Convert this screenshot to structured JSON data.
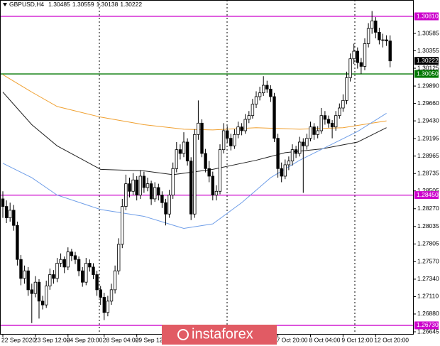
{
  "chart_data": {
    "type": "candlestick",
    "symbol": "GBPUSD,H4",
    "header_values": [
      1.30485,
      1.30559,
      1.30138,
      1.30222
    ],
    "watermark": "instaforex",
    "ylim": [
      1.26617,
      1.31026
    ],
    "yticks": [
      1.30585,
      1.30355,
      1.30125,
      {
        "value": 1.2989,
        "label": "1.29890"
      },
      {
        "value": 1.2966,
        "label": "1.29660"
      },
      {
        "value": 1.2943,
        "label": "1.29430"
      },
      1.29195,
      1.28965,
      1.28735,
      1.28505,
      {
        "value": 1.2827,
        "label": "1.28270"
      },
      1.28035,
      1.27805,
      {
        "value": 1.2757,
        "label": "1.27570"
      },
      {
        "value": 1.2734,
        "label": "1.27340"
      },
      {
        "value": 1.2711,
        "label": "1.27110"
      },
      {
        "value": 1.2688,
        "label": "1.26880"
      },
      1.26645
    ],
    "price_labels": [
      {
        "value": 1.3081,
        "label": "1.30810",
        "color": "#cc00cc",
        "line": true
      },
      {
        "value": 1.30222,
        "label": "1.30222",
        "color": "#000000",
        "line": false
      },
      {
        "value": 1.3005,
        "label": "1.30050",
        "color": "#007700",
        "line": true
      },
      {
        "value": 1.2845,
        "label": "1.28450",
        "color": "#cc00cc",
        "line": true
      },
      {
        "value": 1.2673,
        "label": "1.26730",
        "color": "#cc00cc",
        "line": true
      }
    ],
    "up_color": "#ffffff",
    "down_color": "#000000",
    "categories": [
      "22 Sep 2020",
      null,
      null,
      null,
      null,
      null,
      null,
      null,
      null,
      "23 Sep 12:00",
      null,
      null,
      null,
      null,
      null,
      null,
      null,
      null,
      "24 Sep 20:00",
      null,
      null,
      null,
      null,
      null,
      null,
      null,
      null,
      null,
      "28 Sep 04:00",
      null,
      null,
      null,
      null,
      null,
      null,
      null,
      null,
      "29 Sep 12:00",
      null,
      null,
      null,
      null,
      null,
      null,
      null,
      null,
      null,
      null,
      null,
      null,
      null,
      null,
      null,
      null,
      null,
      null,
      null,
      null,
      null,
      null,
      null,
      null,
      null,
      null,
      null,
      null,
      null,
      null,
      null,
      null,
      null,
      null,
      null,
      null,
      null,
      null,
      "7 Oct 20:00",
      null,
      null,
      null,
      null,
      null,
      null,
      null,
      null,
      "8 Oct 04:00",
      null,
      null,
      null,
      null,
      null,
      null,
      null,
      null,
      "9 Oct 12:00",
      null,
      null,
      null,
      null,
      null,
      null,
      null,
      null,
      "12 Oct 20:00",
      null,
      null,
      null,
      null
    ],
    "ohlc": [
      [
        1.284,
        1.285,
        1.2815,
        1.283
      ],
      [
        1.283,
        1.2838,
        1.2808,
        1.2815
      ],
      [
        1.2815,
        1.2835,
        1.281,
        1.2825
      ],
      [
        1.2825,
        1.2832,
        1.2798,
        1.2805
      ],
      [
        1.2805,
        1.281,
        1.2752,
        1.276
      ],
      [
        1.276,
        1.2766,
        1.2726,
        1.2735
      ],
      [
        1.2735,
        1.2752,
        1.2728,
        1.2745
      ],
      [
        1.2745,
        1.275,
        1.2712,
        1.272
      ],
      [
        1.272,
        1.2728,
        1.2676,
        1.2715
      ],
      [
        1.2715,
        1.2738,
        1.271,
        1.273
      ],
      [
        1.273,
        1.2734,
        1.2682,
        1.2705
      ],
      [
        1.2705,
        1.2712,
        1.2694,
        1.27
      ],
      [
        1.27,
        1.2732,
        1.2696,
        1.2725
      ],
      [
        1.2725,
        1.2748,
        1.272,
        1.274
      ],
      [
        1.274,
        1.2746,
        1.2728,
        1.2735
      ],
      [
        1.2735,
        1.2762,
        1.273,
        1.2755
      ],
      [
        1.2755,
        1.2768,
        1.275,
        1.276
      ],
      [
        1.276,
        1.2764,
        1.2742,
        1.275
      ],
      [
        1.275,
        1.2776,
        1.2746,
        1.277
      ],
      [
        1.277,
        1.2774,
        1.2758,
        1.2765
      ],
      [
        1.2765,
        1.277,
        1.2754,
        1.276
      ],
      [
        1.276,
        1.2764,
        1.2738,
        1.2745
      ],
      [
        1.2745,
        1.275,
        1.2724,
        1.273
      ],
      [
        1.273,
        1.2762,
        1.2726,
        1.2755
      ],
      [
        1.2755,
        1.276,
        1.2744,
        1.275
      ],
      [
        1.275,
        1.2755,
        1.2734,
        1.274
      ],
      [
        1.274,
        1.2745,
        1.2712,
        1.272
      ],
      [
        1.272,
        1.2725,
        1.27,
        1.271
      ],
      [
        1.271,
        1.2716,
        1.268,
        1.269
      ],
      [
        1.269,
        1.2712,
        1.2685,
        1.2705
      ],
      [
        1.2705,
        1.2728,
        1.27,
        1.272
      ],
      [
        1.272,
        1.2752,
        1.2715,
        1.2745
      ],
      [
        1.2745,
        1.2788,
        1.274,
        1.278
      ],
      [
        1.278,
        1.284,
        1.2775,
        1.283
      ],
      [
        1.283,
        1.2872,
        1.2825,
        1.286
      ],
      [
        1.286,
        1.2868,
        1.2842,
        1.285
      ],
      [
        1.285,
        1.2874,
        1.2845,
        1.2865
      ],
      [
        1.2865,
        1.287,
        1.2838,
        1.2845
      ],
      [
        1.2845,
        1.2878,
        1.284,
        1.287
      ],
      [
        1.287,
        1.2876,
        1.2848,
        1.2855
      ],
      [
        1.2855,
        1.2868,
        1.285,
        1.286
      ],
      [
        1.286,
        1.2864,
        1.2832,
        1.284
      ],
      [
        1.284,
        1.2862,
        1.2836,
        1.2855
      ],
      [
        1.2855,
        1.286,
        1.2838,
        1.2845
      ],
      [
        1.2845,
        1.285,
        1.2828,
        1.2835
      ],
      [
        1.2835,
        1.284,
        1.2805,
        1.282
      ],
      [
        1.282,
        1.2852,
        1.2815,
        1.2845
      ],
      [
        1.2845,
        1.2888,
        1.284,
        1.288
      ],
      [
        1.288,
        1.2915,
        1.2875,
        1.2905
      ],
      [
        1.2905,
        1.2912,
        1.2892,
        1.29
      ],
      [
        1.29,
        1.2928,
        1.2895,
        1.2915
      ],
      [
        1.2915,
        1.292,
        1.2884,
        1.289
      ],
      [
        1.289,
        1.2895,
        1.2812,
        1.282
      ],
      [
        1.282,
        1.2932,
        1.2815,
        1.2925
      ],
      [
        1.2925,
        1.297,
        1.2918,
        1.294
      ],
      [
        1.294,
        1.2945,
        1.2895,
        1.29
      ],
      [
        1.29,
        1.2906,
        1.2875,
        1.288
      ],
      [
        1.288,
        1.289,
        1.2862,
        1.287
      ],
      [
        1.287,
        1.2876,
        1.2838,
        1.2845
      ],
      [
        1.2845,
        1.2858,
        1.2838,
        1.285
      ],
      [
        1.285,
        1.2912,
        1.2846,
        1.2905
      ],
      [
        1.2905,
        1.294,
        1.29,
        1.293
      ],
      [
        1.293,
        1.2936,
        1.2914,
        1.292
      ],
      [
        1.292,
        1.2926,
        1.2904,
        1.291
      ],
      [
        1.291,
        1.2932,
        1.2906,
        1.2925
      ],
      [
        1.2925,
        1.2942,
        1.292,
        1.2935
      ],
      [
        1.2935,
        1.294,
        1.2924,
        1.293
      ],
      [
        1.293,
        1.2952,
        1.2926,
        1.2945
      ],
      [
        1.2945,
        1.2956,
        1.294,
        1.295
      ],
      [
        1.295,
        1.2972,
        1.2946,
        1.2965
      ],
      [
        1.2965,
        1.2982,
        1.296,
        1.2975
      ],
      [
        1.2975,
        1.2988,
        1.297,
        1.298
      ],
      [
        1.298,
        1.3002,
        1.2976,
        1.299
      ],
      [
        1.299,
        1.2996,
        1.298,
        1.2985
      ],
      [
        1.2985,
        1.299,
        1.2968,
        1.2975
      ],
      [
        1.2975,
        1.298,
        1.2915,
        1.292
      ],
      [
        1.292,
        1.2926,
        1.2868,
        1.288
      ],
      [
        1.288,
        1.2888,
        1.2862,
        1.287
      ],
      [
        1.287,
        1.2892,
        1.2866,
        1.2885
      ],
      [
        1.2885,
        1.2896,
        1.2878,
        1.289
      ],
      [
        1.289,
        1.2912,
        1.2884,
        1.2905
      ],
      [
        1.2905,
        1.291,
        1.2894,
        1.29
      ],
      [
        1.29,
        1.2922,
        1.2896,
        1.2915
      ],
      [
        1.2915,
        1.292,
        1.2848,
        1.291
      ],
      [
        1.291,
        1.2926,
        1.2905,
        1.292
      ],
      [
        1.292,
        1.2942,
        1.2916,
        1.2935
      ],
      [
        1.2935,
        1.294,
        1.2918,
        1.2925
      ],
      [
        1.2925,
        1.2936,
        1.292,
        1.293
      ],
      [
        1.293,
        1.296,
        1.2926,
        1.295
      ],
      [
        1.295,
        1.2956,
        1.2938,
        1.2945
      ],
      [
        1.2945,
        1.295,
        1.2934,
        1.294
      ],
      [
        1.294,
        1.2944,
        1.292,
        1.2935
      ],
      [
        1.2935,
        1.2956,
        1.293,
        1.295
      ],
      [
        1.295,
        1.2966,
        1.2946,
        1.296
      ],
      [
        1.296,
        1.2978,
        1.2955,
        1.297
      ],
      [
        1.297,
        1.3008,
        1.2965,
        1.3
      ],
      [
        1.3,
        1.3032,
        1.2995,
        1.3025
      ],
      [
        1.3025,
        1.3045,
        1.3018,
        1.3035
      ],
      [
        1.3035,
        1.304,
        1.3012,
        1.302
      ],
      [
        1.302,
        1.3026,
        1.3005,
        1.3015
      ],
      [
        1.3015,
        1.3052,
        1.301,
        1.3045
      ],
      [
        1.3045,
        1.3072,
        1.304,
        1.3065
      ],
      [
        1.3065,
        1.3088,
        1.3058,
        1.3075
      ],
      [
        1.3075,
        1.308,
        1.3052,
        1.306
      ],
      [
        1.306,
        1.3066,
        1.3044,
        1.305
      ],
      [
        1.305,
        1.3058,
        1.304,
        1.305
      ],
      [
        1.305,
        1.3056,
        1.3042,
        1.30485
      ],
      [
        1.30485,
        1.30559,
        1.30138,
        1.30222
      ]
    ],
    "moving_averages": [
      {
        "color": "#222222",
        "x": [
          0,
          8,
          15,
          27,
          39,
          47,
          58,
          70,
          78,
          88,
          98,
          106
        ],
        "values": [
          1.2981,
          1.2938,
          1.291,
          1.2879,
          1.2877,
          1.2872,
          1.2879,
          1.2891,
          1.2901,
          1.2906,
          1.2915,
          1.2934
        ]
      },
      {
        "color": "#f0a030",
        "x": [
          0,
          8,
          15,
          27,
          39,
          50,
          58,
          70,
          82,
          94,
          106
        ],
        "values": [
          1.3004,
          1.2981,
          1.2962,
          1.2948,
          1.2938,
          1.2932,
          1.2931,
          1.2934,
          1.2932,
          1.2934,
          1.2943
        ]
      },
      {
        "color": "#6f9ee8",
        "x": [
          0,
          8,
          15,
          27,
          39,
          50,
          58,
          66,
          74,
          82,
          90,
          98,
          106
        ],
        "values": [
          1.2887,
          1.2868,
          1.2845,
          1.2826,
          1.2817,
          1.2801,
          1.2807,
          1.2835,
          1.2868,
          1.2891,
          1.291,
          1.2929,
          1.2953
        ]
      }
    ]
  }
}
